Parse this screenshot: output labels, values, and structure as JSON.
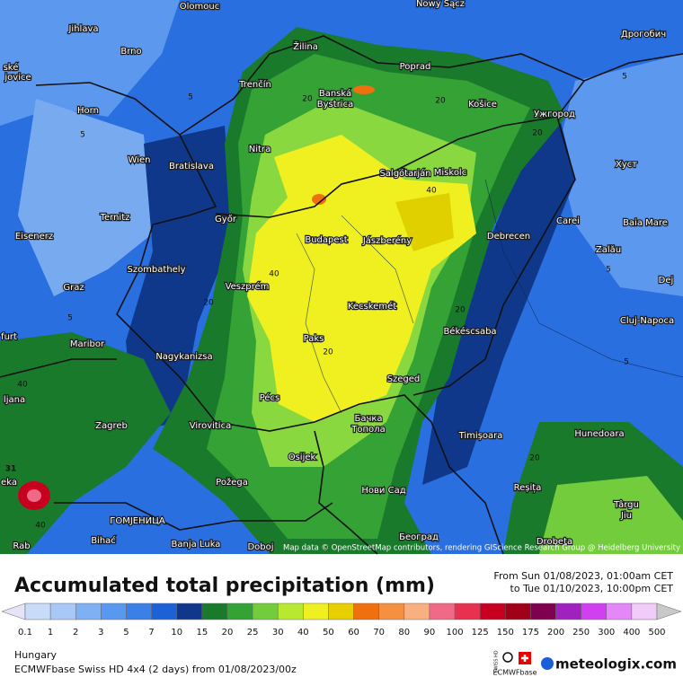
{
  "map": {
    "attribution": "Map data © OpenStreetMap contributors, rendering GIScience Research Group @ Heidelberg University",
    "cities": [
      "Olomouc",
      "Jihlava",
      "Brno",
      "Žilina",
      "Poprad",
      "Nowy Sącz",
      "Дрогобич",
      "Trenčín",
      "Banská",
      "Bystrica",
      "Košice",
      "Ужгород",
      "Horn",
      "Nitra",
      "Wien",
      "Bratislava",
      "Salgótarján",
      "Miskolc",
      "Хуст",
      "Ternitz",
      "Győr",
      "Budapest",
      "Jászberény",
      "Debrecen",
      "Carei",
      "Baia Mare",
      "Eisenerz",
      "Szombathely",
      "Zalău",
      "Graz",
      "Veszprém",
      "Dej",
      "Kecskemét",
      "Cluj-Napoca",
      "furt",
      "Maribor",
      "Paks",
      "Békéscsaba",
      "Nagykanizsa",
      "ljana",
      "Pécs",
      "Szeged",
      "Zagreb",
      "Virovitica",
      "Бачка",
      "Топола",
      "Timișoara",
      "Hunedoara",
      "Osijek",
      "Požega",
      "Нови Сад",
      "Reșița",
      "Târgu",
      "Jiu",
      "ГОМЈЕНИЦА",
      "Bihać",
      "Banja Luka",
      "Doboj",
      "Београд",
      "Drobeta",
      "ské",
      "jovice",
      "eka",
      "Rab"
    ],
    "contour_labels": [
      "5",
      "5",
      "5",
      "5",
      "20",
      "20",
      "20",
      "20",
      "20",
      "40",
      "40",
      "40",
      "20",
      "5",
      "5",
      "20",
      "40",
      "31"
    ]
  },
  "legend": {
    "title": "Accumulated total precipitation (mm)",
    "period_from": "From Sun 01/08/2023, 01:00am CET",
    "period_to": "to Tue 01/10/2023, 10:00pm CET",
    "ticks": [
      0.1,
      1,
      2,
      3,
      5,
      7,
      10,
      15,
      20,
      25,
      30,
      40,
      50,
      60,
      70,
      80,
      90,
      100,
      125,
      150,
      175,
      200,
      250,
      300,
      400,
      500
    ],
    "colors": [
      "#e4e4f6",
      "#c8dcfa",
      "#a8c8f8",
      "#80b0f4",
      "#5898ee",
      "#3a80e6",
      "#1c62d6",
      "#10388a",
      "#1a7a2c",
      "#34a234",
      "#72cc3c",
      "#b8e830",
      "#f0f020",
      "#e8d000",
      "#f07010",
      "#f49040",
      "#f8b080",
      "#f06a88",
      "#e83050",
      "#c80020",
      "#a00018",
      "#800050",
      "#a020c0",
      "#d040f0",
      "#e488f8",
      "#f2ccf8",
      "#faf0fa",
      "#c8c8c8"
    ]
  },
  "footer": {
    "region": "Hungary",
    "model": "ECMWFbase Swiss HD 4x4 (2 days) from 01/08/2023/00z",
    "badge_top": "SWISS HD",
    "badge_bottom": "ECMWFbase",
    "brand": "meteologix.com"
  }
}
